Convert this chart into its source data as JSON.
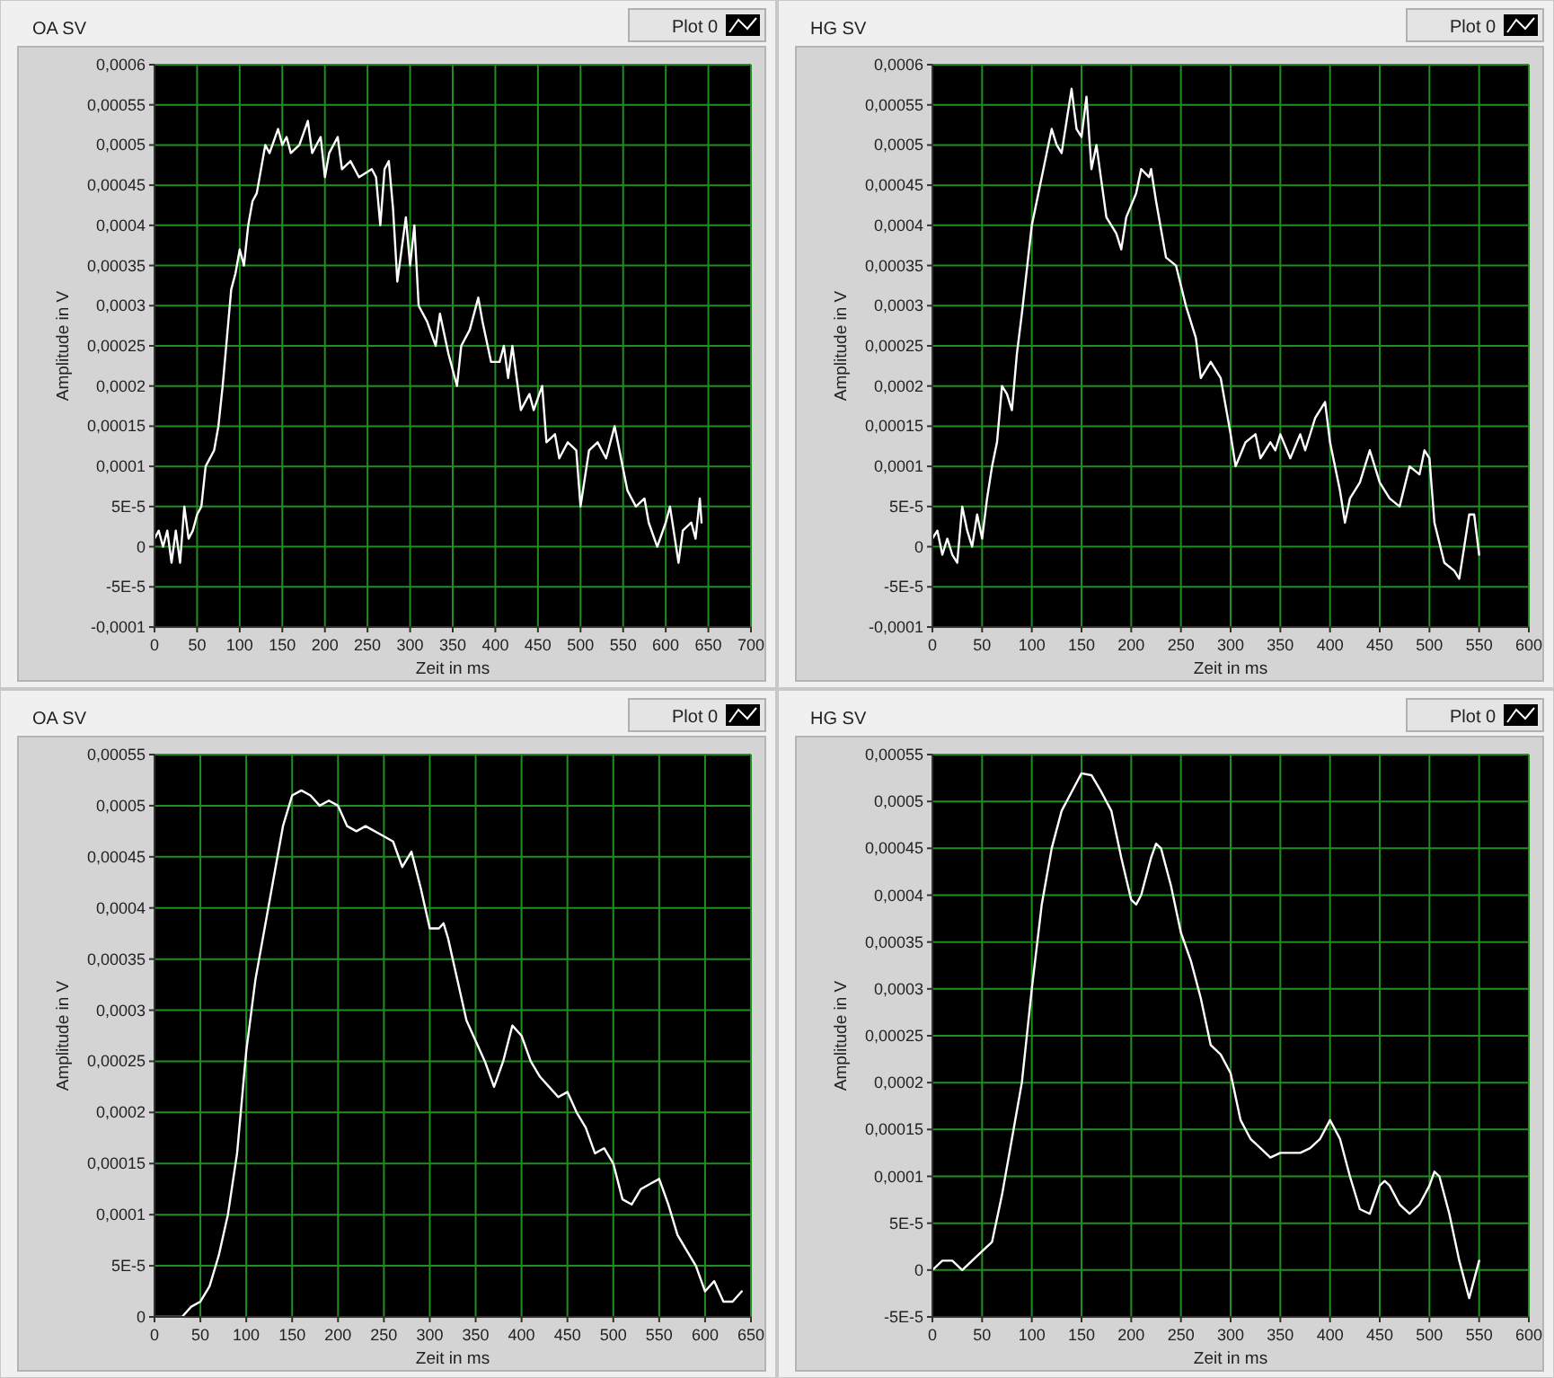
{
  "chart_data": [
    {
      "type": "line",
      "title": "OA SV",
      "xlabel": "Zeit in ms",
      "ylabel": "Amplitude in V",
      "legend": "top right",
      "grid": true,
      "xlim": [
        0,
        700
      ],
      "xticks": [
        0,
        50,
        100,
        150,
        200,
        250,
        300,
        350,
        400,
        450,
        500,
        550,
        600,
        650,
        700
      ],
      "ylim": [
        -0.0001,
        0.0006
      ],
      "yticks": [
        {
          "value": -0.0001,
          "label": "-0,0001"
        },
        {
          "value": -5e-05,
          "label": "-5E-5"
        },
        {
          "value": 0,
          "label": "0"
        },
        {
          "value": 5e-05,
          "label": "5E-5"
        },
        {
          "value": 0.0001,
          "label": "0,0001"
        },
        {
          "value": 0.00015,
          "label": "0,00015"
        },
        {
          "value": 0.0002,
          "label": "0,0002"
        },
        {
          "value": 0.00025,
          "label": "0,00025"
        },
        {
          "value": 0.0003,
          "label": "0,0003"
        },
        {
          "value": 0.00035,
          "label": "0,00035"
        },
        {
          "value": 0.0004,
          "label": "0,0004"
        },
        {
          "value": 0.00045,
          "label": "0,00045"
        },
        {
          "value": 0.0005,
          "label": "0,0005"
        },
        {
          "value": 0.00055,
          "label": "0,00055"
        },
        {
          "value": 0.0006,
          "label": "0,0006"
        }
      ],
      "series": [
        {
          "name": "Plot 0",
          "color": "#ffffff",
          "x": [
            0,
            5,
            10,
            15,
            20,
            25,
            30,
            35,
            40,
            45,
            50,
            55,
            60,
            70,
            75,
            80,
            85,
            90,
            95,
            100,
            105,
            110,
            115,
            120,
            130,
            135,
            145,
            150,
            155,
            160,
            170,
            180,
            185,
            195,
            200,
            205,
            215,
            220,
            230,
            240,
            255,
            260,
            265,
            270,
            275,
            280,
            285,
            290,
            295,
            300,
            305,
            310,
            320,
            330,
            335,
            345,
            355,
            360,
            370,
            380,
            385,
            395,
            405,
            410,
            415,
            420,
            430,
            440,
            445,
            455,
            460,
            470,
            475,
            485,
            495,
            500,
            510,
            520,
            530,
            540,
            555,
            565,
            575,
            580,
            590,
            600,
            605,
            615,
            620,
            630,
            635,
            640,
            642
          ],
          "values": [
            1e-05,
            2e-05,
            0,
            2e-05,
            -2e-05,
            2e-05,
            -2e-05,
            5e-05,
            1e-05,
            2e-05,
            4e-05,
            5e-05,
            0.0001,
            0.00012,
            0.00015,
            0.0002,
            0.00026,
            0.00032,
            0.00034,
            0.00037,
            0.00035,
            0.0004,
            0.00043,
            0.00044,
            0.0005,
            0.00049,
            0.00052,
            0.0005,
            0.00051,
            0.00049,
            0.0005,
            0.00053,
            0.00049,
            0.00051,
            0.00046,
            0.00049,
            0.00051,
            0.00047,
            0.00048,
            0.00046,
            0.00047,
            0.00046,
            0.0004,
            0.00047,
            0.00048,
            0.00042,
            0.00033,
            0.00037,
            0.00041,
            0.00035,
            0.0004,
            0.0003,
            0.00028,
            0.00025,
            0.00029,
            0.00024,
            0.0002,
            0.00025,
            0.00027,
            0.00031,
            0.00028,
            0.00023,
            0.00023,
            0.00025,
            0.00021,
            0.00025,
            0.00017,
            0.00019,
            0.00017,
            0.0002,
            0.00013,
            0.00014,
            0.00011,
            0.00013,
            0.00012,
            5e-05,
            0.00012,
            0.00013,
            0.00011,
            0.00015,
            7e-05,
            5e-05,
            6e-05,
            3e-05,
            0,
            3e-05,
            5e-05,
            -2e-05,
            2e-05,
            3e-05,
            1e-05,
            6e-05,
            3e-05
          ]
        }
      ]
    },
    {
      "type": "line",
      "title": "HG SV",
      "xlabel": "Zeit in ms",
      "ylabel": "Amplitude in V",
      "legend": "top right",
      "grid": true,
      "xlim": [
        0,
        600
      ],
      "xticks": [
        0,
        50,
        100,
        150,
        200,
        250,
        300,
        350,
        400,
        450,
        500,
        550,
        600
      ],
      "ylim": [
        -0.0001,
        0.0006
      ],
      "yticks": [
        {
          "value": -0.0001,
          "label": "-0,0001"
        },
        {
          "value": -5e-05,
          "label": "-5E-5"
        },
        {
          "value": 0,
          "label": "0"
        },
        {
          "value": 5e-05,
          "label": "5E-5"
        },
        {
          "value": 0.0001,
          "label": "0,0001"
        },
        {
          "value": 0.00015,
          "label": "0,00015"
        },
        {
          "value": 0.0002,
          "label": "0,0002"
        },
        {
          "value": 0.00025,
          "label": "0,00025"
        },
        {
          "value": 0.0003,
          "label": "0,0003"
        },
        {
          "value": 0.00035,
          "label": "0,00035"
        },
        {
          "value": 0.0004,
          "label": "0,0004"
        },
        {
          "value": 0.00045,
          "label": "0,00045"
        },
        {
          "value": 0.0005,
          "label": "0,0005"
        },
        {
          "value": 0.00055,
          "label": "0,00055"
        },
        {
          "value": 0.0006,
          "label": "0,0006"
        }
      ],
      "series": [
        {
          "name": "Plot 0",
          "color": "#ffffff",
          "x": [
            0,
            5,
            10,
            15,
            20,
            25,
            30,
            35,
            40,
            45,
            50,
            55,
            60,
            65,
            70,
            75,
            80,
            85,
            90,
            100,
            105,
            115,
            120,
            125,
            130,
            140,
            145,
            150,
            155,
            160,
            165,
            175,
            185,
            190,
            195,
            205,
            210,
            218,
            220,
            225,
            235,
            245,
            255,
            265,
            270,
            280,
            290,
            300,
            305,
            315,
            325,
            330,
            340,
            345,
            350,
            360,
            370,
            375,
            385,
            395,
            400,
            410,
            415,
            420,
            430,
            440,
            450,
            460,
            470,
            480,
            490,
            495,
            500,
            505,
            515,
            525,
            530,
            535,
            540,
            545,
            550
          ],
          "values": [
            1e-05,
            2e-05,
            -1e-05,
            1e-05,
            -1e-05,
            -2e-05,
            5e-05,
            2e-05,
            0,
            4e-05,
            1e-05,
            6e-05,
            0.0001,
            0.00013,
            0.0002,
            0.00019,
            0.00017,
            0.00024,
            0.00029,
            0.0004,
            0.00043,
            0.00049,
            0.00052,
            0.0005,
            0.00049,
            0.00057,
            0.00052,
            0.00051,
            0.00056,
            0.00047,
            0.0005,
            0.00041,
            0.00039,
            0.00037,
            0.00041,
            0.00044,
            0.00047,
            0.00046,
            0.00047,
            0.00043,
            0.00036,
            0.00035,
            0.0003,
            0.00026,
            0.00021,
            0.00023,
            0.00021,
            0.00014,
            0.0001,
            0.00013,
            0.00014,
            0.00011,
            0.00013,
            0.00012,
            0.00014,
            0.00011,
            0.00014,
            0.00012,
            0.00016,
            0.00018,
            0.00013,
            7e-05,
            3e-05,
            6e-05,
            8e-05,
            0.00012,
            8e-05,
            6e-05,
            5e-05,
            0.0001,
            9e-05,
            0.00012,
            0.00011,
            3e-05,
            -2e-05,
            -3e-05,
            -4e-05,
            0,
            4e-05,
            4e-05,
            -1e-05
          ]
        }
      ]
    },
    {
      "type": "line",
      "title": "OA SV",
      "xlabel": "Zeit in ms",
      "ylabel": "Amplitude in V",
      "legend": "top right",
      "grid": true,
      "xlim": [
        0,
        650
      ],
      "xticks": [
        0,
        50,
        100,
        150,
        200,
        250,
        300,
        350,
        400,
        450,
        500,
        550,
        600,
        650
      ],
      "ylim": [
        0,
        0.00055
      ],
      "yticks": [
        {
          "value": 0,
          "label": "0"
        },
        {
          "value": 5e-05,
          "label": "5E-5"
        },
        {
          "value": 0.0001,
          "label": "0,0001"
        },
        {
          "value": 0.00015,
          "label": "0,00015"
        },
        {
          "value": 0.0002,
          "label": "0,0002"
        },
        {
          "value": 0.00025,
          "label": "0,00025"
        },
        {
          "value": 0.0003,
          "label": "0,0003"
        },
        {
          "value": 0.00035,
          "label": "0,00035"
        },
        {
          "value": 0.0004,
          "label": "0,0004"
        },
        {
          "value": 0.00045,
          "label": "0,00045"
        },
        {
          "value": 0.0005,
          "label": "0,0005"
        },
        {
          "value": 0.00055,
          "label": "0,00055"
        }
      ],
      "series": [
        {
          "name": "Plot 0",
          "color": "#ffffff",
          "x": [
            0,
            10,
            20,
            30,
            40,
            50,
            60,
            70,
            80,
            90,
            100,
            110,
            120,
            130,
            140,
            150,
            160,
            170,
            180,
            190,
            200,
            210,
            220,
            230,
            250,
            260,
            270,
            280,
            290,
            300,
            310,
            315,
            320,
            330,
            340,
            350,
            360,
            370,
            380,
            390,
            400,
            410,
            420,
            430,
            440,
            450,
            460,
            470,
            480,
            490,
            500,
            510,
            520,
            530,
            540,
            550,
            560,
            570,
            580,
            590,
            600,
            610,
            620,
            630,
            640
          ],
          "values": [
            0,
            0,
            0,
            0,
            1e-05,
            1.5e-05,
            3e-05,
            6e-05,
            0.0001,
            0.00016,
            0.00026,
            0.00033,
            0.00038,
            0.00043,
            0.00048,
            0.00051,
            0.000515,
            0.00051,
            0.0005,
            0.000505,
            0.0005,
            0.00048,
            0.000475,
            0.00048,
            0.00047,
            0.000465,
            0.00044,
            0.000455,
            0.00042,
            0.00038,
            0.00038,
            0.000385,
            0.00037,
            0.00033,
            0.00029,
            0.00027,
            0.00025,
            0.000225,
            0.00025,
            0.000285,
            0.000275,
            0.00025,
            0.000235,
            0.000225,
            0.000215,
            0.00022,
            0.0002,
            0.000185,
            0.00016,
            0.000165,
            0.00015,
            0.000115,
            0.00011,
            0.000125,
            0.00013,
            0.000135,
            0.00011,
            8e-05,
            6.5e-05,
            5e-05,
            2.5e-05,
            3.5e-05,
            1.5e-05,
            1.5e-05,
            2.5e-05
          ]
        }
      ]
    },
    {
      "type": "line",
      "title": "HG SV",
      "xlabel": "Zeit in ms",
      "ylabel": "Amplitude in V",
      "legend": "top right",
      "grid": true,
      "xlim": [
        0,
        600
      ],
      "xticks": [
        0,
        50,
        100,
        150,
        200,
        250,
        300,
        350,
        400,
        450,
        500,
        550,
        600
      ],
      "ylim": [
        -5e-05,
        0.00055
      ],
      "yticks": [
        {
          "value": -5e-05,
          "label": "-5E-5"
        },
        {
          "value": 0,
          "label": "0"
        },
        {
          "value": 5e-05,
          "label": "5E-5"
        },
        {
          "value": 0.0001,
          "label": "0,0001"
        },
        {
          "value": 0.00015,
          "label": "0,00015"
        },
        {
          "value": 0.0002,
          "label": "0,0002"
        },
        {
          "value": 0.00025,
          "label": "0,00025"
        },
        {
          "value": 0.0003,
          "label": "0,0003"
        },
        {
          "value": 0.00035,
          "label": "0,00035"
        },
        {
          "value": 0.0004,
          "label": "0,0004"
        },
        {
          "value": 0.00045,
          "label": "0,00045"
        },
        {
          "value": 0.0005,
          "label": "0,0005"
        },
        {
          "value": 0.00055,
          "label": "0,00055"
        }
      ],
      "series": [
        {
          "name": "Plot 0",
          "color": "#ffffff",
          "x": [
            0,
            10,
            20,
            30,
            40,
            50,
            60,
            70,
            80,
            90,
            100,
            110,
            120,
            130,
            140,
            150,
            160,
            170,
            180,
            190,
            200,
            205,
            210,
            220,
            225,
            230,
            240,
            250,
            260,
            270,
            280,
            290,
            300,
            310,
            320,
            330,
            340,
            350,
            360,
            370,
            380,
            390,
            400,
            410,
            420,
            430,
            440,
            450,
            455,
            460,
            470,
            480,
            490,
            500,
            505,
            510,
            520,
            530,
            540,
            550
          ],
          "values": [
            0,
            1e-05,
            1e-05,
            0,
            1e-05,
            2e-05,
            3e-05,
            8e-05,
            0.00014,
            0.0002,
            0.0003,
            0.00039,
            0.00045,
            0.00049,
            0.00051,
            0.00053,
            0.000528,
            0.00051,
            0.00049,
            0.00044,
            0.000395,
            0.00039,
            0.0004,
            0.00044,
            0.000455,
            0.00045,
            0.00041,
            0.00036,
            0.00033,
            0.00029,
            0.00024,
            0.00023,
            0.00021,
            0.00016,
            0.00014,
            0.00013,
            0.00012,
            0.000125,
            0.000125,
            0.000125,
            0.00013,
            0.00014,
            0.00016,
            0.00014,
            0.0001,
            6.5e-05,
            6e-05,
            9e-05,
            9.5e-05,
            9e-05,
            7e-05,
            6e-05,
            7e-05,
            9e-05,
            0.000105,
            0.0001,
            6e-05,
            1e-05,
            -3e-05,
            1e-05
          ]
        }
      ]
    }
  ]
}
